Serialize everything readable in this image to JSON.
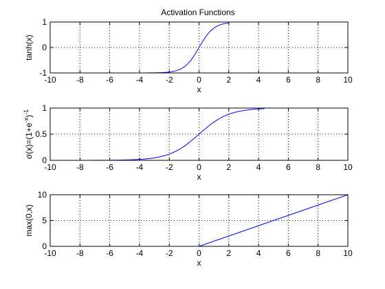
{
  "figure": {
    "title": "Activation Functions"
  },
  "chart_data": [
    {
      "type": "line",
      "title": "Activation Functions",
      "xlabel": "x",
      "ylabel": "tanh(x)",
      "xlim": [
        -10,
        10
      ],
      "ylim": [
        -1,
        1
      ],
      "xticks": [
        -10,
        -8,
        -6,
        -4,
        -2,
        0,
        2,
        4,
        6,
        8,
        10
      ],
      "yticks": [
        -1,
        0,
        1
      ],
      "grid": true,
      "series": [
        {
          "function": "tanh",
          "x_range": [
            -10,
            2
          ],
          "color": "#0000ff"
        }
      ]
    },
    {
      "type": "line",
      "title": "",
      "xlabel": "x",
      "ylabel": "σ(x)=(1+e^-x)^-1",
      "ylabel_parts": {
        "base": "σ(x)=(1+e",
        "exp1": "-x",
        "mid": ")",
        "exp2": "-1"
      },
      "xlim": [
        -10,
        10
      ],
      "ylim": [
        0,
        1
      ],
      "xticks": [
        -10,
        -8,
        -6,
        -4,
        -2,
        0,
        2,
        4,
        6,
        8,
        10
      ],
      "yticks": [
        0,
        0.5,
        1
      ],
      "grid": true,
      "series": [
        {
          "function": "sigmoid",
          "x_range": [
            -10,
            4.4
          ],
          "color": "#0000ff"
        }
      ]
    },
    {
      "type": "line",
      "title": "",
      "xlabel": "x",
      "ylabel": "max(0,x)",
      "xlim": [
        -10,
        10
      ],
      "ylim": [
        0,
        10
      ],
      "xticks": [
        -10,
        -8,
        -6,
        -4,
        -2,
        0,
        2,
        4,
        6,
        8,
        10
      ],
      "yticks": [
        0,
        5,
        10
      ],
      "grid": true,
      "series": [
        {
          "function": "relu",
          "x": [
            0,
            10
          ],
          "y": [
            0,
            10
          ],
          "color": "#0000ff"
        }
      ]
    }
  ]
}
